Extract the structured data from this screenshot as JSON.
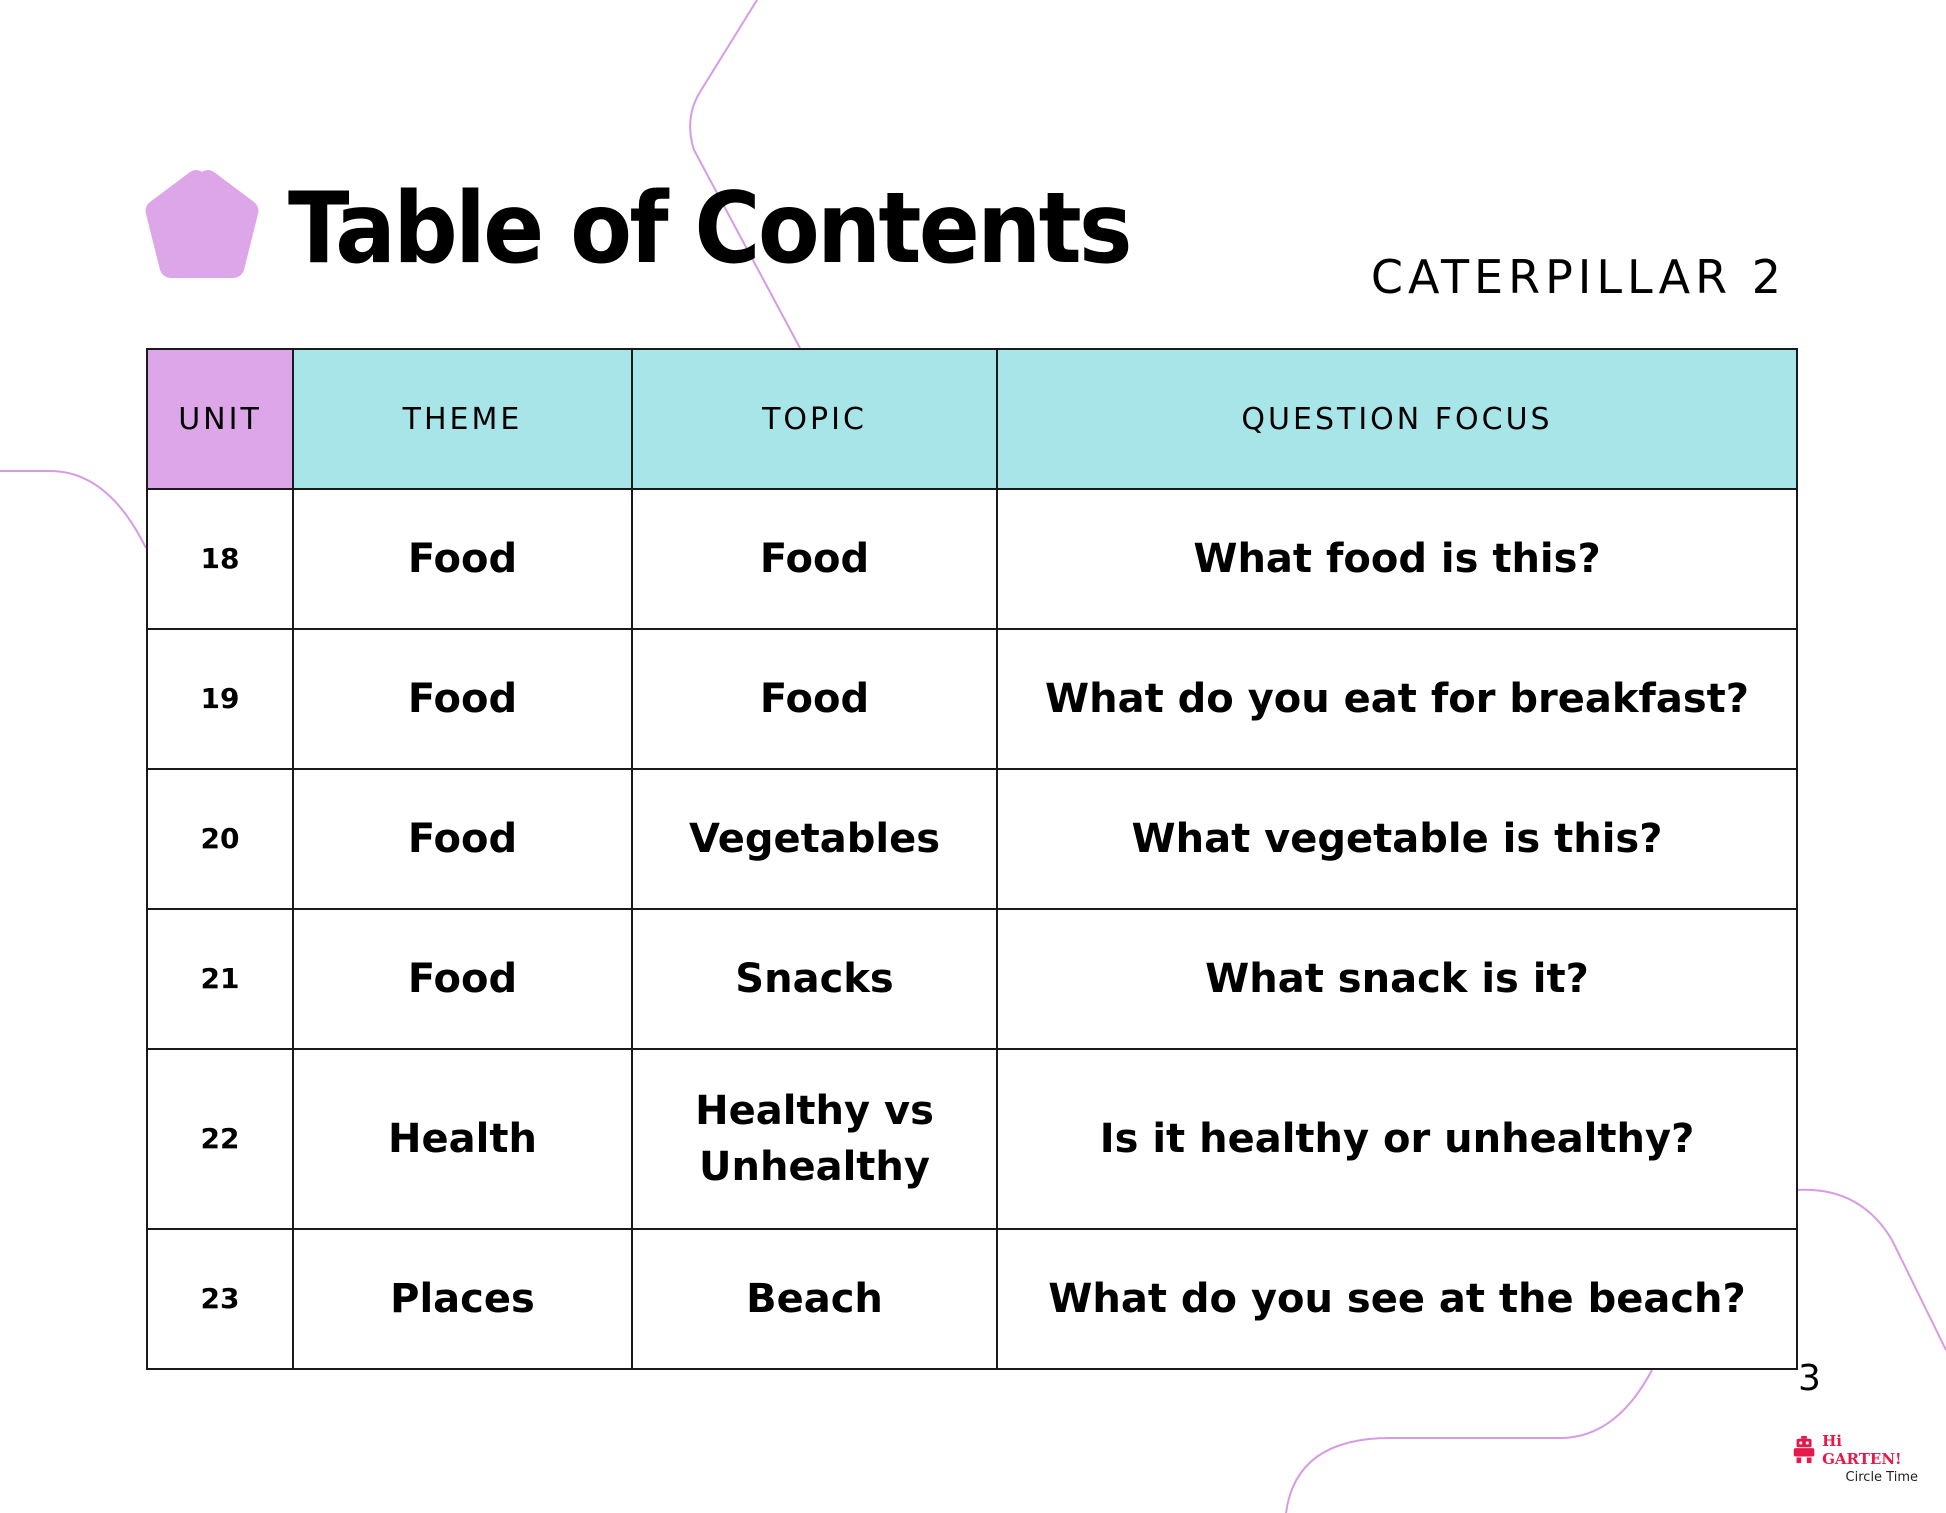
{
  "header": {
    "title": "Table of Contents",
    "subtitle": "CATERPILLAR 2"
  },
  "table": {
    "columns": [
      "UNIT",
      "THEME",
      "TOPIC",
      "QUESTION FOCUS"
    ],
    "rows": [
      {
        "unit": "18",
        "theme": "Food",
        "topic": "Food",
        "question": "What food is this?"
      },
      {
        "unit": "19",
        "theme": "Food",
        "topic": "Food",
        "question": "What do you eat for breakfast?"
      },
      {
        "unit": "20",
        "theme": "Food",
        "topic": "Vegetables",
        "question": "What vegetable is this?"
      },
      {
        "unit": "21",
        "theme": "Food",
        "topic": "Snacks",
        "question": "What snack is it?"
      },
      {
        "unit": "22",
        "theme": "Health",
        "topic": "Healthy vs Unhealthy",
        "question": "Is it healthy or unhealthy?"
      },
      {
        "unit": "23",
        "theme": "Places",
        "topic": "Beach",
        "question": "What do you see at the beach?"
      }
    ]
  },
  "footer": {
    "page_number": "3",
    "logo_brand": "Hi GARTEN!",
    "logo_sub": "Circle Time"
  },
  "colors": {
    "unit_header": "#dda6e8",
    "header": "#a8e5e8",
    "accent": "#dda6e8",
    "decor_line": "#d79be6"
  },
  "icons": {
    "title_shape": "pentagon-icon",
    "logo": "robot-icon"
  }
}
